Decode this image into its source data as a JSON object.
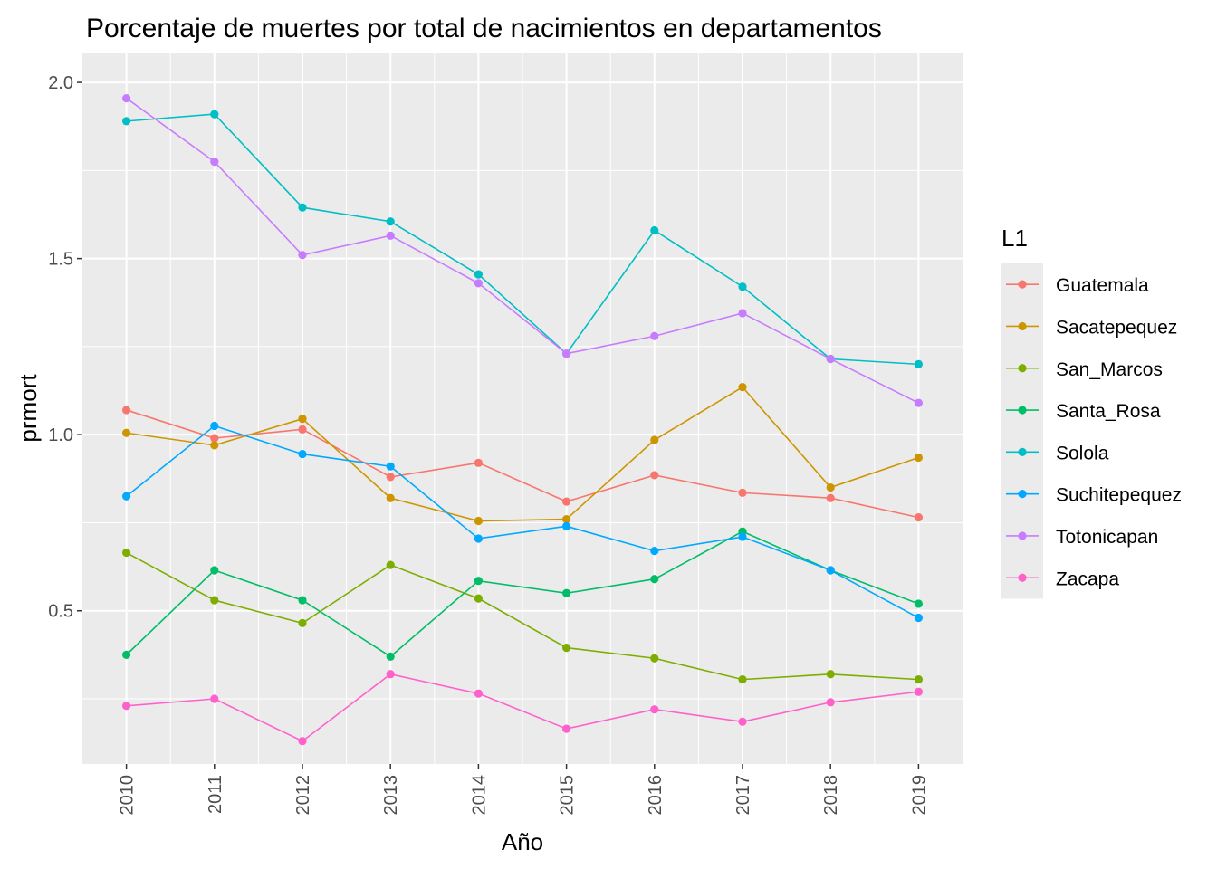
{
  "chart_data": {
    "type": "line",
    "title": "Porcentaje de muertes por total de nacimientos en departamentos",
    "xlabel": "Año",
    "ylabel": "prmort",
    "x": [
      "2010",
      "2011",
      "2012",
      "2013",
      "2014",
      "2015",
      "2016",
      "2017",
      "2018",
      "2019"
    ],
    "xlim": [
      2009.5,
      2019.5
    ],
    "ylim": [
      0.065,
      2.085
    ],
    "yticks": [
      "0.5",
      "1.0",
      "1.5",
      "2.0"
    ],
    "grid": true,
    "x_tick_rotation": "vertical",
    "legend": {
      "title": "L1",
      "position": "right"
    },
    "series": [
      {
        "name": "Guatemala",
        "color": "#F8766D",
        "values": [
          1.07,
          0.99,
          1.015,
          0.88,
          0.92,
          0.81,
          0.885,
          0.835,
          0.82,
          0.765
        ]
      },
      {
        "name": "Sacatepequez",
        "color": "#CD9600",
        "values": [
          1.005,
          0.97,
          1.045,
          0.82,
          0.755,
          0.76,
          0.985,
          1.135,
          0.85,
          0.935
        ]
      },
      {
        "name": "San_Marcos",
        "color": "#7CAE00",
        "values": [
          0.665,
          0.53,
          0.465,
          0.63,
          0.535,
          0.395,
          0.365,
          0.305,
          0.32,
          0.305
        ]
      },
      {
        "name": "Santa_Rosa",
        "color": "#00BE67",
        "values": [
          0.375,
          0.615,
          0.53,
          0.37,
          0.585,
          0.55,
          0.59,
          0.725,
          0.615,
          0.52
        ]
      },
      {
        "name": "Solola",
        "color": "#00BFC4",
        "values": [
          1.89,
          1.91,
          1.645,
          1.605,
          1.455,
          1.23,
          1.58,
          1.42,
          1.215,
          1.2
        ]
      },
      {
        "name": "Suchitepequez",
        "color": "#00A9FF",
        "values": [
          0.825,
          1.025,
          0.945,
          0.91,
          0.705,
          0.74,
          0.67,
          0.71,
          0.615,
          0.48
        ]
      },
      {
        "name": "Totonicapan",
        "color": "#C77CFF",
        "values": [
          1.955,
          1.775,
          1.51,
          1.565,
          1.43,
          1.23,
          1.28,
          1.345,
          1.215,
          1.09
        ]
      },
      {
        "name": "Zacapa",
        "color": "#FF61CC",
        "values": [
          0.23,
          0.25,
          0.13,
          0.32,
          0.265,
          0.165,
          0.22,
          0.185,
          0.24,
          0.27
        ]
      }
    ]
  }
}
